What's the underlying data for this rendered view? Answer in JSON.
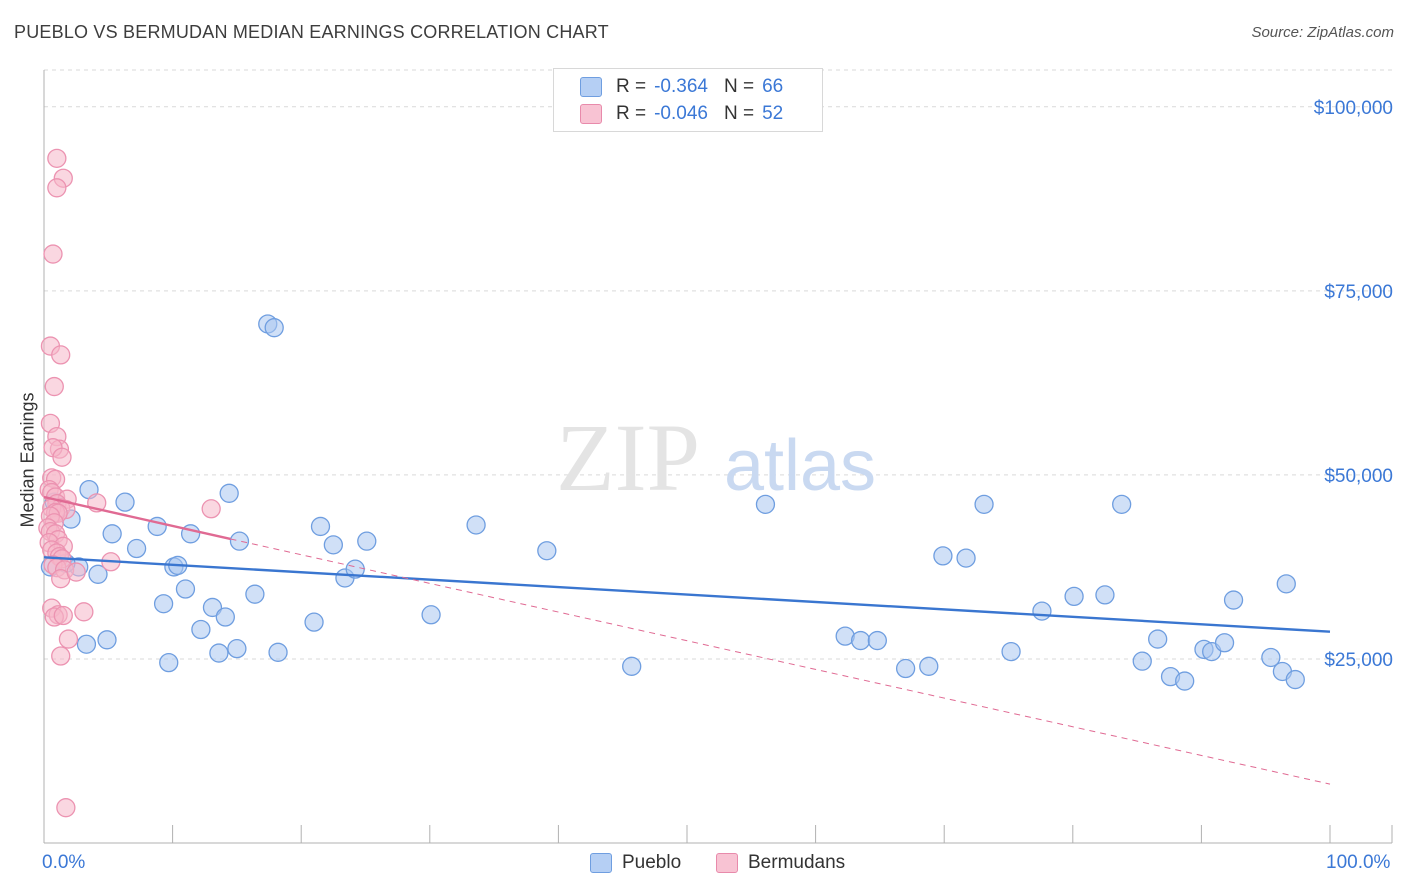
{
  "title": "PUEBLO VS BERMUDAN MEDIAN EARNINGS CORRELATION CHART",
  "source": "Source: ZipAtlas.com",
  "watermark": {
    "zip": "ZIP",
    "atlas": "atlas"
  },
  "colors": {
    "blue": "#3a76d0",
    "blue_fill": "#a9c6f0",
    "pink": "#e06a93",
    "pink_fill": "#f5b6c9",
    "axis_text": "#3b78d6",
    "grid": "#d9d9d9"
  },
  "legend": {
    "r_label": "R =",
    "n_label": "N =",
    "rows": [
      {
        "r": "-0.364",
        "n": "66"
      },
      {
        "r": "-0.046",
        "n": "52"
      }
    ]
  },
  "bottom_legend": [
    "Pueblo",
    "Bermudans"
  ],
  "chart_data": {
    "type": "scatter",
    "title": "PUEBLO VS BERMUDAN MEDIAN EARNINGS CORRELATION CHART",
    "xlabel": "",
    "ylabel": "Median Earnings",
    "xlim": [
      0,
      100
    ],
    "ylim": [
      0,
      105000
    ],
    "x_tick_labels": [
      "0.0%",
      "100.0%"
    ],
    "y_ticks": [
      {
        "value": 25000,
        "label": "$25,000"
      },
      {
        "value": 50000,
        "label": "$50,000"
      },
      {
        "value": 75000,
        "label": "$75,000"
      },
      {
        "value": 100000,
        "label": "$100,000"
      }
    ],
    "series": [
      {
        "name": "Pueblo",
        "color": "#3a76d0",
        "points": [
          [
            3.5,
            48000
          ],
          [
            6.3,
            46300
          ],
          [
            4.2,
            36500
          ],
          [
            2.7,
            37500
          ],
          [
            1.7,
            38000
          ],
          [
            0.5,
            37500
          ],
          [
            5.3,
            42000
          ],
          [
            7.2,
            40000
          ],
          [
            8.8,
            43000
          ],
          [
            10.1,
            37500
          ],
          [
            11.4,
            42000
          ],
          [
            12.2,
            29000
          ],
          [
            14.4,
            47500
          ],
          [
            15.2,
            41000
          ],
          [
            16.4,
            33800
          ],
          [
            13.1,
            32000
          ],
          [
            17.4,
            70500
          ],
          [
            17.9,
            70000
          ],
          [
            21.5,
            43000
          ],
          [
            22.5,
            40500
          ],
          [
            23.4,
            36000
          ],
          [
            24.2,
            37200
          ],
          [
            25.1,
            41000
          ],
          [
            30.1,
            31000
          ],
          [
            33.6,
            43200
          ],
          [
            39.1,
            39700
          ],
          [
            45.7,
            24000
          ],
          [
            56.1,
            46000
          ],
          [
            62.3,
            28100
          ],
          [
            63.5,
            27500
          ],
          [
            64.8,
            27500
          ],
          [
            67.0,
            23700
          ],
          [
            68.8,
            24000
          ],
          [
            69.9,
            39000
          ],
          [
            71.7,
            38700
          ],
          [
            73.1,
            46000
          ],
          [
            75.2,
            26000
          ],
          [
            77.6,
            31500
          ],
          [
            80.1,
            33500
          ],
          [
            82.5,
            33700
          ],
          [
            83.8,
            46000
          ],
          [
            85.4,
            24700
          ],
          [
            86.6,
            27700
          ],
          [
            87.6,
            22600
          ],
          [
            88.7,
            22000
          ],
          [
            90.2,
            26300
          ],
          [
            90.8,
            26000
          ],
          [
            91.8,
            27200
          ],
          [
            92.5,
            33000
          ],
          [
            95.4,
            25200
          ],
          [
            96.3,
            23300
          ],
          [
            96.6,
            35200
          ],
          [
            97.3,
            22200
          ],
          [
            0.8,
            46300
          ],
          [
            3.3,
            27000
          ],
          [
            4.9,
            27600
          ],
          [
            10.4,
            37700
          ],
          [
            9.3,
            32500
          ],
          [
            11.0,
            34500
          ],
          [
            9.7,
            24500
          ],
          [
            13.6,
            25800
          ],
          [
            15.0,
            26400
          ],
          [
            14.1,
            30700
          ],
          [
            18.2,
            25900
          ],
          [
            21.0,
            30000
          ],
          [
            2.1,
            44000
          ]
        ]
      },
      {
        "name": "Bermudans",
        "color": "#e06a93",
        "points": [
          [
            1.0,
            93000
          ],
          [
            1.5,
            90300
          ],
          [
            1.0,
            89000
          ],
          [
            0.7,
            80000
          ],
          [
            0.5,
            67500
          ],
          [
            1.3,
            66300
          ],
          [
            0.8,
            62000
          ],
          [
            0.5,
            57000
          ],
          [
            1.0,
            55200
          ],
          [
            1.2,
            53500
          ],
          [
            0.7,
            53700
          ],
          [
            1.4,
            52400
          ],
          [
            0.6,
            49600
          ],
          [
            0.9,
            49400
          ],
          [
            0.4,
            48000
          ],
          [
            0.6,
            47600
          ],
          [
            0.9,
            47000
          ],
          [
            1.8,
            46700
          ],
          [
            1.0,
            46100
          ],
          [
            1.3,
            45500
          ],
          [
            1.7,
            45300
          ],
          [
            0.6,
            45500
          ],
          [
            0.9,
            44900
          ],
          [
            1.1,
            44800
          ],
          [
            0.5,
            44400
          ],
          [
            0.8,
            43500
          ],
          [
            0.3,
            42800
          ],
          [
            0.5,
            42300
          ],
          [
            0.9,
            42000
          ],
          [
            1.1,
            41200
          ],
          [
            0.4,
            40800
          ],
          [
            1.5,
            40300
          ],
          [
            0.6,
            39800
          ],
          [
            1.0,
            39400
          ],
          [
            1.2,
            38900
          ],
          [
            1.4,
            38600
          ],
          [
            0.7,
            37800
          ],
          [
            1.0,
            37400
          ],
          [
            1.6,
            37100
          ],
          [
            1.3,
            35900
          ],
          [
            0.6,
            31900
          ],
          [
            1.1,
            31000
          ],
          [
            0.8,
            30700
          ],
          [
            1.5,
            30900
          ],
          [
            3.1,
            31400
          ],
          [
            1.9,
            27700
          ],
          [
            1.3,
            25400
          ],
          [
            4.1,
            46200
          ],
          [
            5.2,
            38200
          ],
          [
            13.0,
            45400
          ],
          [
            1.7,
            4800
          ],
          [
            2.5,
            36800
          ]
        ]
      }
    ],
    "trendlines": [
      {
        "series": "Pueblo",
        "from": [
          0,
          38800
        ],
        "to": [
          100,
          28700
        ],
        "style": "solid"
      },
      {
        "series": "Bermudans",
        "from": [
          0,
          47000
        ],
        "to": [
          14.5,
          41300
        ],
        "style": "solid"
      },
      {
        "series": "Bermudans",
        "from": [
          14.5,
          41300
        ],
        "to": [
          100,
          8000
        ],
        "style": "dashed"
      }
    ],
    "grid": true,
    "legend_position": "top-center"
  }
}
